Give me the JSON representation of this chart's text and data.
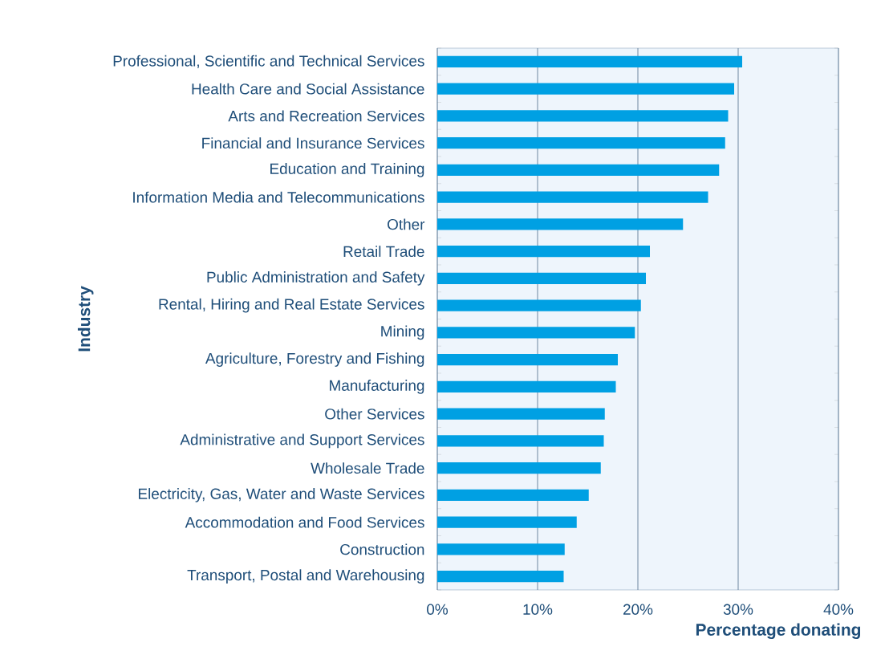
{
  "chart_data": {
    "type": "bar",
    "orientation": "horizontal",
    "xlabel": "Percentage donating",
    "ylabel": "Industry",
    "categories": [
      "Professional, Scientific and Technical Services",
      "Health Care and Social Assistance",
      "Arts and Recreation Services",
      "Financial and Insurance Services",
      "Education and Training",
      "Information Media and Telecommunications",
      "Other",
      "Retail Trade",
      "Public Administration and Safety",
      "Rental, Hiring and Real Estate Services",
      "Mining",
      "Agriculture, Forestry and Fishing",
      "Manufacturing",
      "Other Services",
      "Administrative and Support Services",
      "Wholesale Trade",
      "Electricity, Gas, Water and Waste Services",
      "Accommodation and Food Services",
      "Construction",
      "Transport, Postal and Warehousing"
    ],
    "values": [
      30.4,
      29.6,
      29.0,
      28.7,
      28.1,
      27.0,
      24.5,
      21.2,
      20.8,
      20.3,
      19.7,
      18.0,
      17.8,
      16.7,
      16.6,
      16.3,
      15.1,
      13.9,
      12.7,
      12.6
    ],
    "color": "#00a0e3",
    "xlim": [
      0,
      40
    ],
    "xticks": [
      {
        "value": 0,
        "label": "0%"
      },
      {
        "value": 10,
        "label": "10%"
      },
      {
        "value": 20,
        "label": "20%"
      },
      {
        "value": 30,
        "label": "30%"
      },
      {
        "value": 40,
        "label": "40%"
      }
    ],
    "grid": "x"
  }
}
